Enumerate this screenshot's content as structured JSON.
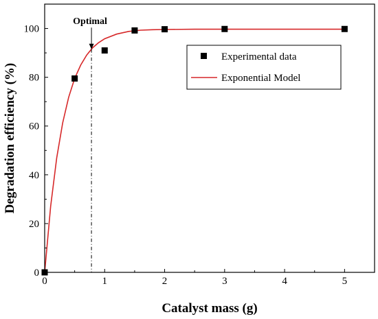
{
  "chart_data": {
    "type": "scatter",
    "xlabel": "Catalyst mass (g)",
    "ylabel": "Degradation efficiency (%)",
    "xlim": [
      0,
      5.5
    ],
    "ylim": [
      0,
      110
    ],
    "x_ticks": [
      0,
      1,
      2,
      3,
      4,
      5
    ],
    "y_ticks": [
      0,
      20,
      40,
      60,
      80,
      100
    ],
    "series": [
      {
        "name": "Experimental data",
        "kind": "scatter",
        "marker": "square",
        "color": "#000000",
        "x": [
          0,
          0.5,
          1,
          1.5,
          2,
          3,
          5
        ],
        "y": [
          0,
          79.5,
          91,
          99.2,
          99.7,
          99.8,
          99.8
        ]
      },
      {
        "name": "Exponential Model",
        "kind": "line",
        "color": "#d62728",
        "x": [
          0,
          0.1,
          0.2,
          0.3,
          0.4,
          0.5,
          0.6,
          0.7,
          0.8,
          0.9,
          1.0,
          1.2,
          1.4,
          1.6,
          1.8,
          2.0,
          2.5,
          3.0,
          3.5,
          4.0,
          4.5,
          5.0
        ],
        "y": [
          0,
          27.1,
          46.9,
          61.3,
          71.8,
          79.5,
          85.0,
          89.1,
          92.1,
          94.2,
          95.8,
          97.7,
          98.8,
          99.3,
          99.5,
          99.6,
          99.7,
          99.7,
          99.7,
          99.7,
          99.7,
          99.7
        ]
      }
    ],
    "annotations": [
      {
        "text": "Optimal",
        "x": 0.78,
        "y_text": 101.5,
        "y_arrow_tip": 91.5
      }
    ],
    "grid": false,
    "legend_position": "top-right"
  }
}
